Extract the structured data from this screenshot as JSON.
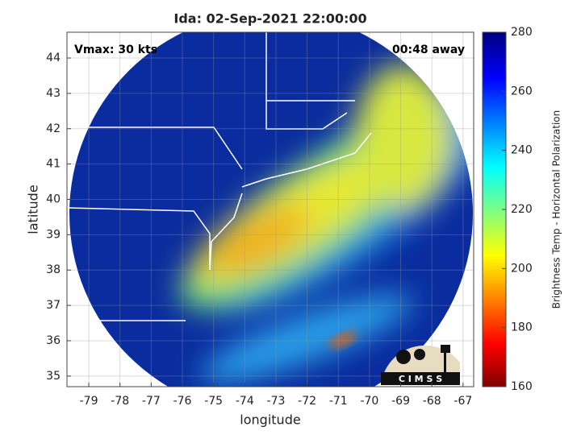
{
  "chart_data": {
    "type": "map",
    "title": "Ida: 02-Sep-2021 22:00:00",
    "xlabel": "longitude",
    "ylabel": "latitude",
    "xlim": [
      -79.7,
      -66.66
    ],
    "ylim": [
      34.7,
      44.73
    ],
    "xticks": [
      -79,
      -78,
      -77,
      -76,
      -75,
      -74,
      -73,
      -72,
      -71,
      -70,
      -69,
      -68,
      -67
    ],
    "yticks": [
      35,
      36,
      37,
      38,
      39,
      40,
      41,
      42,
      43,
      44
    ],
    "grid": true,
    "annotations": [
      "Vmax: 30 kts",
      "00:48 away"
    ],
    "logo": "C I M S S",
    "colorbar": {
      "label": "Brightness Temp - Horizontal Polarization",
      "lim": [
        160,
        280
      ],
      "ticks": [
        160,
        180,
        200,
        220,
        240,
        260,
        280
      ]
    }
  }
}
